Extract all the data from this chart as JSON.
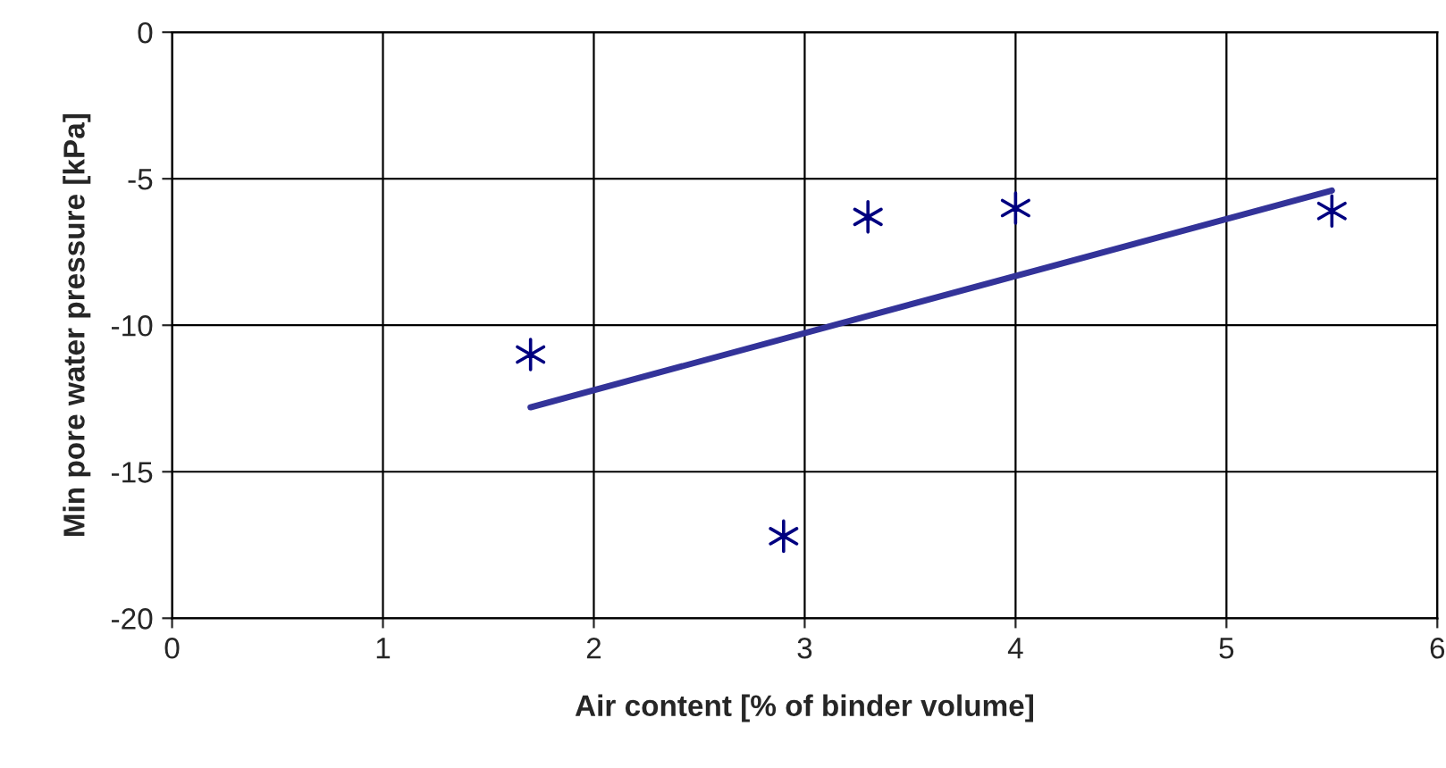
{
  "chart_data": {
    "type": "scatter",
    "xlabel": "Air content [% of binder volume]",
    "ylabel": "Min pore water pressure [kPa]",
    "series": [
      {
        "color": "#000080",
        "marker": "cross",
        "x": [
          1.7,
          2.9,
          3.3,
          4.0,
          5.5
        ],
        "values": [
          -11.0,
          -17.2,
          -6.3,
          -6.0,
          -6.1
        ]
      },
      {
        "type": "line",
        "color": "#333399",
        "marker": "none",
        "x": [
          1.7,
          5.5
        ],
        "values": [
          -12.8,
          -5.4
        ]
      }
    ],
    "xlim": [
      0,
      6
    ],
    "xticks": [
      0,
      1,
      2,
      3,
      4,
      5,
      6
    ],
    "ylim": [
      -20,
      0
    ],
    "yticks": [
      -20,
      -15,
      -10,
      -5,
      0
    ],
    "grid": true,
    "legend": false
  }
}
